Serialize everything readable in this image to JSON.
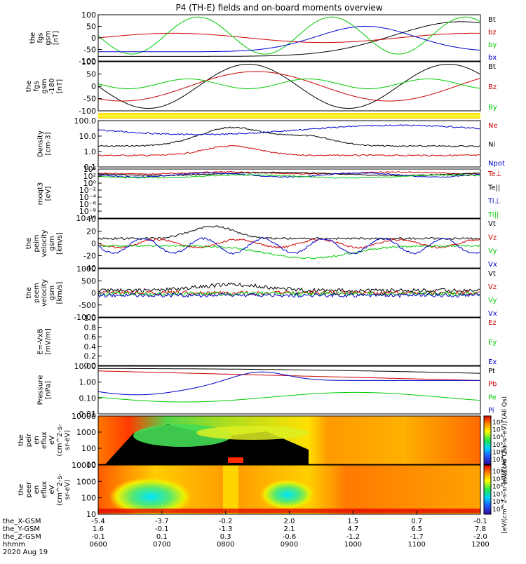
{
  "title": "P4 (TH-E) fields and on-board moments overview",
  "chart_data": [
    {
      "type": "line",
      "ylabel_lines": [
        "the",
        "fgs",
        "gsm",
        "[nT]"
      ],
      "y_ticks": [
        100,
        50,
        0,
        -50,
        -100
      ],
      "series": [
        {
          "name": "Bt",
          "color": "#000000"
        },
        {
          "name": "bz",
          "color": "#cc0000"
        },
        {
          "name": "by",
          "color": "#00cc00"
        },
        {
          "name": "bx",
          "color": "#0000cc"
        }
      ]
    },
    {
      "type": "line",
      "ylabel_lines": [
        "the",
        "fgs",
        "gsm",
        "-180",
        "[nT]"
      ],
      "y_ticks": [
        100,
        50,
        0,
        -50,
        -100
      ],
      "series": [
        {
          "name": "Bt",
          "color": "#000000"
        },
        {
          "name": "Bz",
          "color": "#cc0000"
        },
        {
          "name": "By",
          "color": "#00cc00"
        }
      ]
    },
    {
      "type": "line",
      "ylabel_lines": [
        "Density",
        "[cm-3]"
      ],
      "y_ticks": [
        "100.0",
        "10.0",
        "1.0",
        "0.1"
      ],
      "series": [
        {
          "name": "Ne",
          "color": "#cc0000"
        },
        {
          "name": "Ni",
          "color": "#000000"
        },
        {
          "name": "Npot",
          "color": "#0000cc"
        }
      ]
    },
    {
      "type": "line",
      "ylabel_lines": [
        "moqt3",
        "[eV]"
      ],
      "y_ticks": [
        "10⁴",
        "10²",
        "10⁰",
        "10⁻²",
        "10⁻⁴",
        "10⁻⁶",
        "10⁻⁸",
        "10⁻¹⁰"
      ],
      "series": [
        {
          "name": "Te⊥",
          "color": "#cc0000"
        },
        {
          "name": "Te||",
          "color": "#000000"
        },
        {
          "name": "Ti⊥",
          "color": "#0000cc"
        },
        {
          "name": "Ti||",
          "color": "#00cc00"
        }
      ]
    },
    {
      "type": "line",
      "ylabel_lines": [
        "the",
        "peim",
        "velocity",
        "gsm",
        "[km/s]"
      ],
      "y_ticks": [
        40,
        20,
        0,
        -20,
        -40
      ],
      "series": [
        {
          "name": "Vt",
          "color": "#000000"
        },
        {
          "name": "Vz",
          "color": "#cc0000"
        },
        {
          "name": "Vy",
          "color": "#00cc00"
        },
        {
          "name": "Vx",
          "color": "#0000cc"
        }
      ]
    },
    {
      "type": "line",
      "ylabel_lines": [
        "the",
        "peem",
        "velocity",
        "gsm",
        "[km/s]"
      ],
      "y_ticks": [
        1000,
        500,
        0,
        -500,
        -1000
      ],
      "series": [
        {
          "name": "Vt",
          "color": "#000000"
        },
        {
          "name": "Vz",
          "color": "#cc0000"
        },
        {
          "name": "Vy",
          "color": "#00cc00"
        },
        {
          "name": "Vx",
          "color": "#0000cc"
        }
      ]
    },
    {
      "type": "line",
      "ylabel_lines": [
        "E=-VxB",
        "[mV/m]"
      ],
      "y_ticks": [
        "1.0",
        "0.8",
        "0.6",
        "0.4",
        "0.2",
        "0.0"
      ],
      "series": [
        {
          "name": "Ez",
          "color": "#cc0000"
        },
        {
          "name": "Ey",
          "color": "#00cc00"
        },
        {
          "name": "Ex",
          "color": "#0000cc"
        }
      ]
    },
    {
      "type": "line",
      "ylabel_lines": [
        "Pressure",
        "[nPa]"
      ],
      "y_ticks": [
        "10.00",
        "1.00",
        "0.10",
        "0.01"
      ],
      "series": [
        {
          "name": "Pt",
          "color": "#000000"
        },
        {
          "name": "Pb",
          "color": "#cc0000"
        },
        {
          "name": "Pe",
          "color": "#00cc00"
        },
        {
          "name": "Pi",
          "color": "#0000cc"
        }
      ]
    },
    {
      "type": "heatmap",
      "ylabel_lines": [
        "the",
        "peir",
        "en",
        "eflux",
        "eV",
        "(cm^2-s-",
        "sr-eV)"
      ],
      "y_ticks": [
        10000,
        1000,
        100,
        10
      ],
      "colorbar_ticks": [
        "10⁸",
        "10⁷",
        "10⁶",
        "10⁵",
        "10⁴",
        "10³"
      ],
      "colorbar_label": "[eV/(cm^2-s-sr-eV)] (All Qs)"
    },
    {
      "type": "heatmap",
      "ylabel_lines": [
        "the",
        "peer",
        "en",
        "eflux",
        "eV",
        "(cm^2-s-",
        "sr-eV)"
      ],
      "y_ticks": [
        10000,
        1000,
        100,
        10
      ],
      "colorbar_ticks": [
        "10⁸",
        "10⁷",
        "10⁶",
        "10⁵",
        "10⁴",
        "10³"
      ],
      "colorbar_label": "[eV/(cm^2-s-sr-eV)] (All Qs)"
    }
  ],
  "xaxis": {
    "rows": [
      {
        "label": "the_X-GSM",
        "values": [
          "-5.4",
          "-3.7",
          "-0.2",
          "2.0",
          "1.5",
          "0.7",
          "-0.1"
        ]
      },
      {
        "label": "the_Y-GSM",
        "values": [
          "1.6",
          "-0.1",
          "-1.3",
          "2.1",
          "4.7",
          "6.5",
          "7.8"
        ]
      },
      {
        "label": "the_Z-GSM",
        "values": [
          "-0.1",
          "0.1",
          "0.3",
          "-0.6",
          "-1.2",
          "-1.7",
          "-2.0"
        ]
      },
      {
        "label": "hhmm",
        "values": [
          "0600",
          "0700",
          "0800",
          "0900",
          "1000",
          "1100",
          "1200"
        ]
      }
    ],
    "date": "2020 Aug 19"
  }
}
